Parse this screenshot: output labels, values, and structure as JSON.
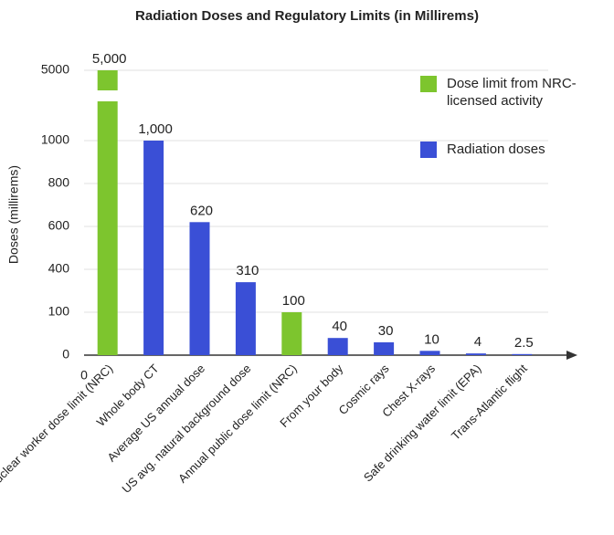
{
  "chart_data": {
    "type": "bar",
    "title": "Radiation Doses and Regulatory Limits (in Millirems)",
    "y_label": "Doses (millirems)",
    "x_origin_label": "0",
    "y_scale": "broken",
    "categories": [
      "Annual nuclear worker dose limit (NRC)",
      "Whole body CT",
      "Average US annual dose",
      "US avg. natural background dose",
      "Annual public dose limit (NRC)",
      "From your body",
      "Cosmic rays",
      "Chest X-rays",
      "Safe drinking water limit (EPA)",
      "Trans-Atlantic flight"
    ],
    "series": [
      {
        "name": "Dose limit from NRC-licensed activity",
        "color": "#7dc52e",
        "values": [
          5000,
          null,
          null,
          null,
          100,
          null,
          null,
          null,
          null,
          null
        ],
        "value_labels": [
          "5,000",
          null,
          null,
          null,
          "100",
          null,
          null,
          null,
          null,
          null
        ]
      },
      {
        "name": "Radiation doses",
        "color": "#3a4fd6",
        "values": [
          null,
          1000,
          620,
          310,
          null,
          40,
          30,
          10,
          4,
          2.5
        ],
        "value_labels": [
          null,
          "1,000",
          "620",
          "310",
          null,
          "40",
          "30",
          "10",
          "4",
          "2.5"
        ]
      }
    ],
    "ylim": [
      0,
      5000
    ],
    "yticks": [
      0,
      100,
      400,
      600,
      800,
      1000,
      5000
    ],
    "legend": "top-right"
  }
}
